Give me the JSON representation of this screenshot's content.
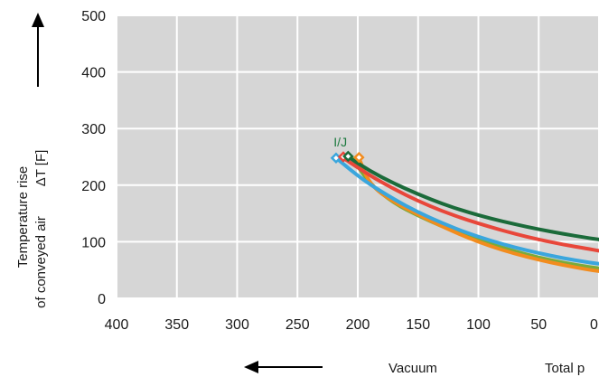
{
  "chart_data": {
    "type": "line",
    "xlabel": "Total p",
    "xlabel_secondary": "Vacuum",
    "ylabel_line1": "Temperature rise",
    "ylabel_line2": "of conveyed air",
    "ylabel_symbol": "ΔT [F]",
    "xlim": [
      400,
      0
    ],
    "ylim": [
      0,
      500
    ],
    "x_ticks": [
      "400",
      "350",
      "300",
      "250",
      "200",
      "150",
      "100",
      "50",
      "0"
    ],
    "y_ticks": [
      "0",
      "100",
      "200",
      "300",
      "400",
      "500"
    ],
    "grid": true,
    "plot_background": "#d6d6d6",
    "annotation": {
      "text": "I/J",
      "color": "#1e7a40"
    },
    "series": [
      {
        "color": "#1b6b3a",
        "x": [
          208,
          190,
          170,
          150,
          130,
          110,
          90,
          70,
          50,
          30,
          10,
          0
        ],
        "y": [
          250,
          225,
          203,
          184,
          167,
          153,
          141,
          131,
          122,
          114,
          107,
          104
        ]
      },
      {
        "color": "#e8473a",
        "x": [
          212,
          190,
          170,
          150,
          130,
          110,
          90,
          70,
          50,
          30,
          10,
          0
        ],
        "y": [
          248,
          217,
          193,
          172,
          154,
          139,
          126,
          114,
          104,
          95,
          88,
          84
        ]
      },
      {
        "color": "#3aa6dd",
        "x": [
          218,
          195,
          170,
          150,
          130,
          110,
          90,
          70,
          50,
          30,
          10,
          0
        ],
        "y": [
          248,
          208,
          175,
          152,
          133,
          116,
          102,
          90,
          80,
          71,
          64,
          61
        ]
      },
      {
        "color": "#f28c1e",
        "x": [
          199,
          190,
          170,
          150,
          130,
          110,
          90,
          70,
          50,
          30,
          10,
          0
        ],
        "y": [
          248,
          200,
          170,
          148,
          127,
          108,
          92,
          79,
          68,
          59,
          51,
          48
        ]
      },
      {
        "color": "#7aab3a",
        "x": [
          205,
          190,
          170,
          150,
          130,
          110,
          90,
          70,
          50,
          30,
          10,
          0
        ],
        "y": [
          249,
          202,
          168,
          146,
          127,
          110,
          96,
          83,
          72,
          63,
          56,
          53
        ]
      }
    ],
    "markers": [
      {
        "x": 218,
        "y": 248,
        "color": "#3aa6dd"
      },
      {
        "x": 212,
        "y": 250,
        "color": "#e8473a"
      },
      {
        "x": 208,
        "y": 251,
        "color": "#1b6b3a"
      },
      {
        "x": 199,
        "y": 249,
        "color": "#f28c1e"
      }
    ]
  }
}
